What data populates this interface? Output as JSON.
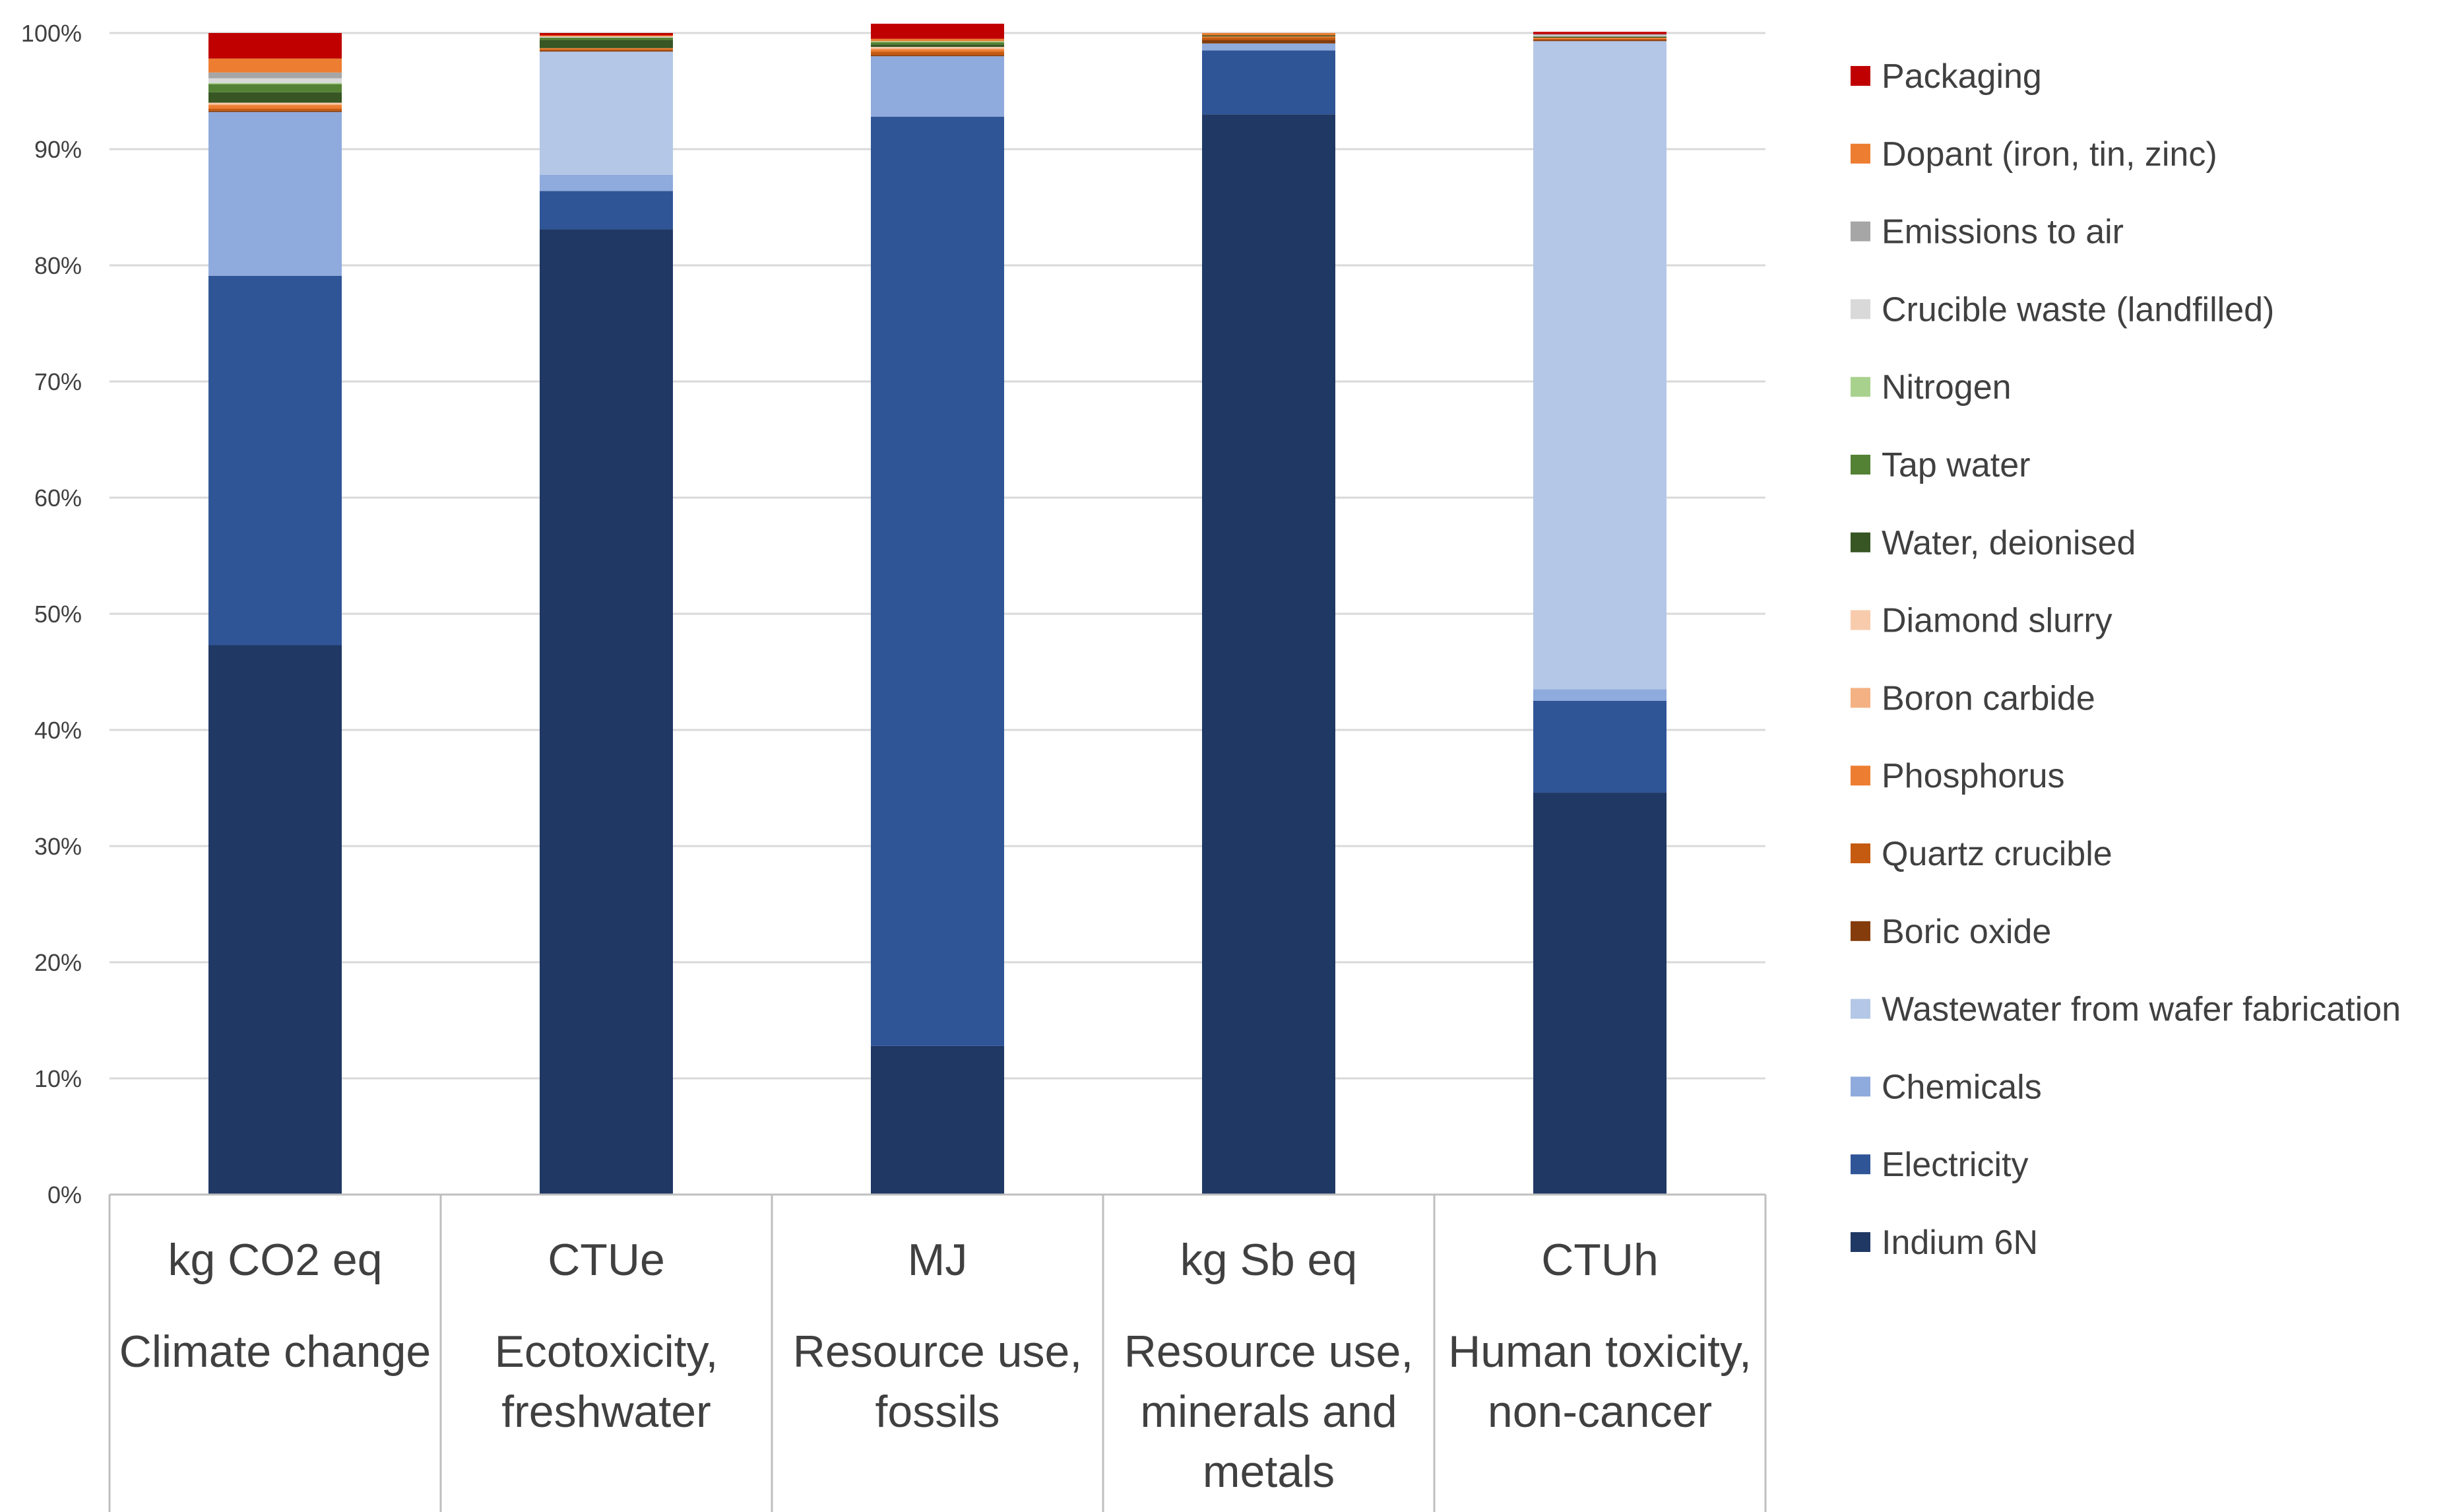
{
  "chart_data": {
    "type": "bar",
    "stacked": true,
    "normalized": true,
    "title": "",
    "xlabel": "",
    "ylabel": "",
    "ylim": [
      0,
      100
    ],
    "yticks": [
      "0%",
      "10%",
      "20%",
      "30%",
      "40%",
      "50%",
      "60%",
      "70%",
      "80%",
      "90%",
      "100%"
    ],
    "categories": [
      {
        "unit": "kg CO2 eq",
        "name_lines": [
          "Climate change"
        ]
      },
      {
        "unit": "CTUe",
        "name_lines": [
          "Ecotoxicity,",
          "freshwater"
        ]
      },
      {
        "unit": "MJ",
        "name_lines": [
          "Resource use,",
          "fossils"
        ]
      },
      {
        "unit": "kg Sb eq",
        "name_lines": [
          "Resource use,",
          "minerals and",
          "metals"
        ]
      },
      {
        "unit": "CTUh",
        "name_lines": [
          "Human toxicity,",
          "non-cancer"
        ]
      }
    ],
    "series": [
      {
        "name": "Indium 6N",
        "color": "#203864",
        "values": [
          47.3,
          83.1,
          12.8,
          93.0,
          34.6
        ]
      },
      {
        "name": "Electricity",
        "color": "#2F5597",
        "values": [
          31.8,
          3.3,
          80.0,
          5.5,
          7.9
        ]
      },
      {
        "name": "Chemicals",
        "color": "#8FAADC",
        "values": [
          14.1,
          1.4,
          5.2,
          0.6,
          1.0
        ]
      },
      {
        "name": "Wastewater from wafer fabrication",
        "color": "#B4C7E7",
        "values": [
          0.0,
          10.6,
          0.0,
          0.0,
          55.8
        ]
      },
      {
        "name": "Boric oxide",
        "color": "#843C0C",
        "values": [
          0.1,
          0.1,
          0.1,
          0.3,
          0.1
        ]
      },
      {
        "name": "Quartz crucible",
        "color": "#C55A11",
        "values": [
          0.2,
          0.1,
          0.3,
          0.2,
          0.1
        ]
      },
      {
        "name": "Phosphorus",
        "color": "#ED7D31",
        "values": [
          0.3,
          0.1,
          0.2,
          0.1,
          0.1
        ]
      },
      {
        "name": "Boron carbide",
        "color": "#F4B183",
        "values": [
          0.1,
          0.0,
          0.1,
          0.0,
          0.0
        ]
      },
      {
        "name": "Diamond slurry",
        "color": "#F8CBAD",
        "values": [
          0.1,
          0.0,
          0.1,
          0.0,
          0.0
        ]
      },
      {
        "name": "Water, deionised",
        "color": "#375623",
        "values": [
          0.9,
          0.7,
          0.2,
          0.1,
          0.1
        ]
      },
      {
        "name": "Tap water",
        "color": "#548235",
        "values": [
          0.7,
          0.2,
          0.2,
          0.0,
          0.0
        ]
      },
      {
        "name": "Nitrogen",
        "color": "#A9D18E",
        "values": [
          0.1,
          0.0,
          0.1,
          0.0,
          0.0
        ]
      },
      {
        "name": "Crucible waste (landfilled)",
        "color": "#D9D9D9",
        "values": [
          0.4,
          0.1,
          0.0,
          0.0,
          0.1
        ]
      },
      {
        "name": "Emissions to air",
        "color": "#A6A6A6",
        "values": [
          0.5,
          0.0,
          0.0,
          0.0,
          0.1
        ]
      },
      {
        "name": "Dopant (iron, tin, zinc)",
        "color": "#ED7D31",
        "values": [
          1.2,
          0.1,
          0.2,
          0.2,
          0.0
        ]
      },
      {
        "name": "Packaging",
        "color": "#C00000",
        "values": [
          2.2,
          0.2,
          1.3,
          0.0,
          0.2
        ]
      }
    ],
    "legend": {
      "position": "right",
      "order": [
        "Packaging",
        "Dopant (iron, tin, zinc)",
        "Emissions to air",
        "Crucible waste (landfilled)",
        "Nitrogen",
        "Tap water",
        "Water, deionised",
        "Diamond slurry",
        "Boron carbide",
        "Phosphorus",
        "Quartz crucible",
        "Boric oxide",
        "Wastewater from wafer fabrication",
        "Chemicals",
        "Electricity",
        "Indium 6N"
      ]
    },
    "grid": true
  }
}
